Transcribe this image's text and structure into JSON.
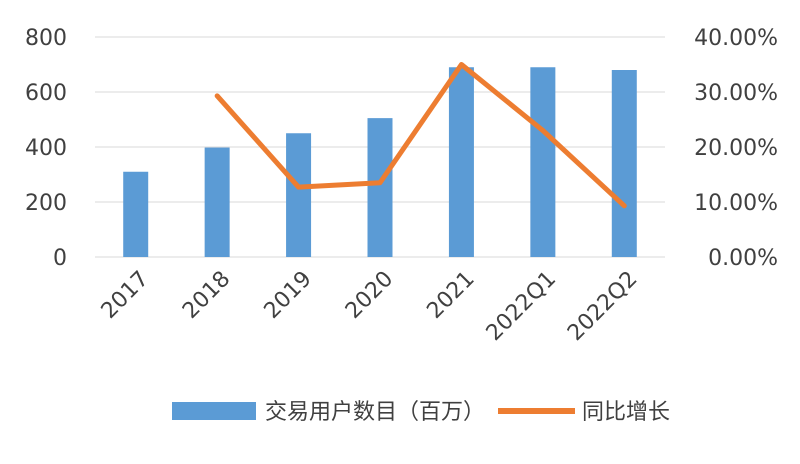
{
  "chart_data": {
    "type": "bar+line",
    "categories": [
      "2017",
      "2018",
      "2019",
      "2020",
      "2021",
      "2022Q1",
      "2022Q2"
    ],
    "series": [
      {
        "name": "交易用户数目（百万）",
        "type": "bar",
        "axis": "left",
        "values": [
          310,
          398,
          450,
          505,
          690,
          690,
          680
        ]
      },
      {
        "name": "同比增长",
        "type": "line",
        "axis": "right",
        "values": [
          null,
          0.293,
          0.127,
          0.135,
          0.35,
          0.23,
          0.093
        ]
      }
    ],
    "y_left": {
      "min": 0,
      "max": 800,
      "ticks": [
        "0",
        "200",
        "400",
        "600",
        "800"
      ]
    },
    "y_right": {
      "min": 0,
      "max": 0.4,
      "ticks": [
        "0.00%",
        "10.00%",
        "20.00%",
        "30.00%",
        "40.00%"
      ]
    },
    "grid": true,
    "legend_position": "bottom",
    "colors": {
      "bar": "#5b9bd5",
      "line": "#ed7d31",
      "grid": "#d9d9d9",
      "text": "#404040"
    }
  }
}
